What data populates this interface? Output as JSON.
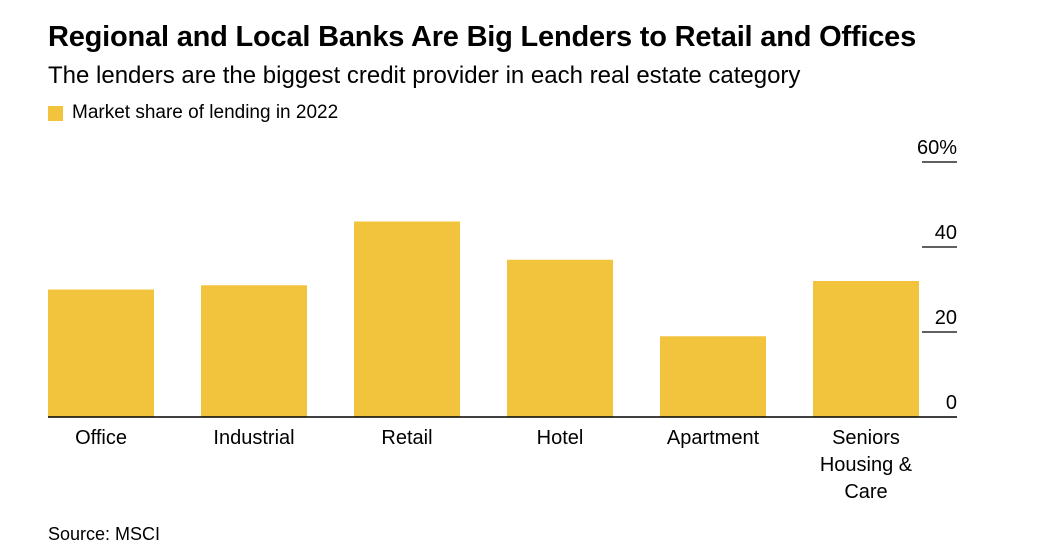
{
  "header": {
    "title": "Regional and Local Banks Are Big Lenders to Retail and Offices",
    "subtitle": "The lenders are the biggest credit provider in each real estate category"
  },
  "legend": {
    "label": "Market share of lending in 2022"
  },
  "footer": {
    "source": "Source: MSCI"
  },
  "chart_data": {
    "type": "bar",
    "categories": [
      "Office",
      "Industrial",
      "Retail",
      "Hotel",
      "Apartment",
      "Seniors Housing & Care"
    ],
    "category_label_lines": [
      [
        "Office"
      ],
      [
        "Industrial"
      ],
      [
        "Retail"
      ],
      [
        "Hotel"
      ],
      [
        "Apartment"
      ],
      [
        "Seniors",
        "Housing &",
        "Care"
      ]
    ],
    "series": [
      {
        "name": "Market share of lending in 2022",
        "values": [
          30,
          31,
          46,
          37,
          19,
          32
        ]
      }
    ],
    "ylim": [
      0,
      60
    ],
    "yticks": [
      0,
      20,
      40,
      60
    ],
    "ytick_labels": [
      "0",
      "20",
      "40",
      "60%"
    ],
    "y_axis_side": "right",
    "grid": false,
    "legend_position": "top-left",
    "bar_color": "#f2c43d"
  }
}
